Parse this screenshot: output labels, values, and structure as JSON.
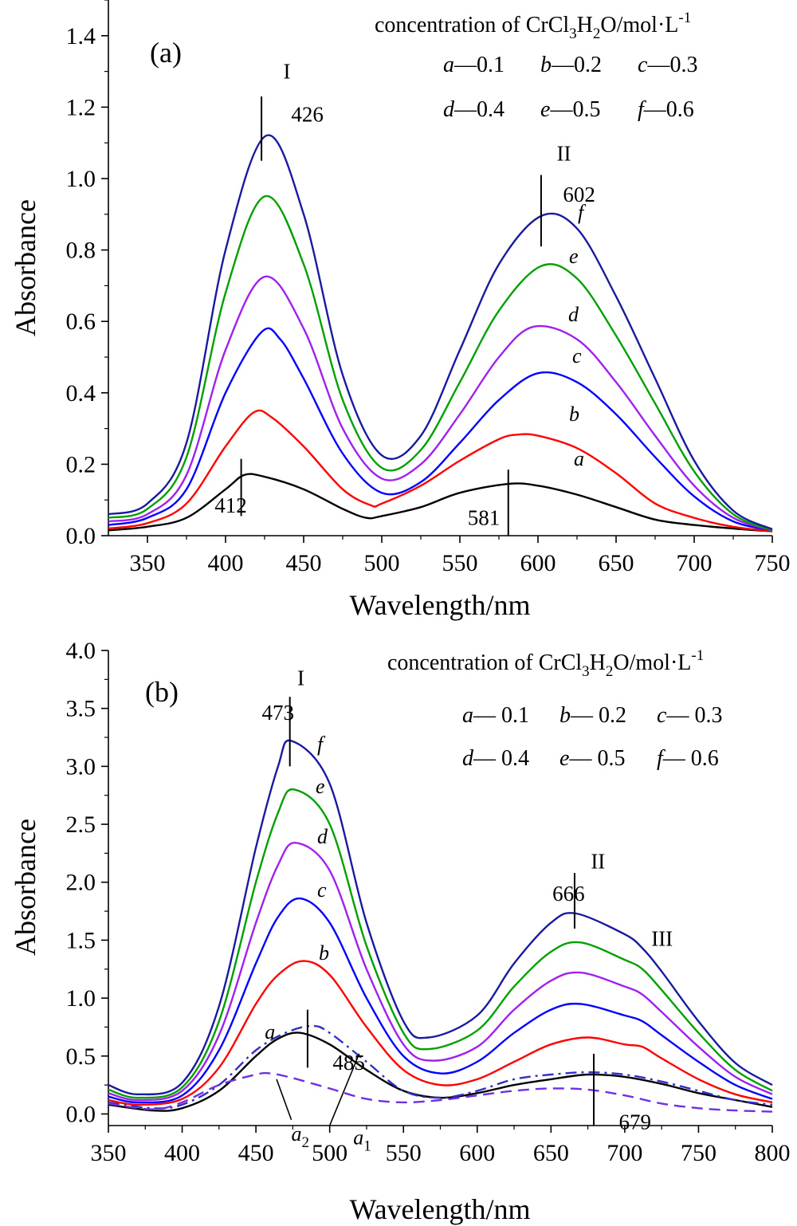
{
  "chart_data": [
    {
      "type": "line",
      "panel_label": "(a)",
      "xlabel": "Wavelength/nm",
      "ylabel": "Absorbance",
      "xlim": [
        325,
        750
      ],
      "ylim": [
        0,
        1.5
      ],
      "xticks": [
        "350",
        "400",
        "450",
        "500",
        "550",
        "600",
        "650",
        "700",
        "750"
      ],
      "yticks": [
        "0.0",
        "0.2",
        "0.4",
        "0.6",
        "0.8",
        "1.0",
        "1.2",
        "1.4"
      ],
      "legend": {
        "title": "concentration of CrCl",
        "title_sub1": "3",
        "title_mid": "H",
        "title_sub2": "2",
        "title_end": "O/mol·L",
        "title_sup": "-1",
        "placement": "top-right",
        "entries": [
          {
            "key": "a",
            "value": "—0.1"
          },
          {
            "key": "b",
            "value": "—0.2"
          },
          {
            "key": "c",
            "value": "—0.3"
          },
          {
            "key": "d",
            "value": "—0.4"
          },
          {
            "key": "e",
            "value": "—0.5"
          },
          {
            "key": "f",
            "value": "—0.6"
          }
        ]
      },
      "series": [
        {
          "label": "a",
          "color": "#000000",
          "x": [
            325,
            350,
            375,
            400,
            412,
            425,
            450,
            475,
            490,
            500,
            525,
            550,
            581,
            600,
            625,
            650,
            675,
            700,
            725,
            750
          ],
          "y": [
            0.015,
            0.025,
            0.05,
            0.13,
            0.17,
            0.165,
            0.13,
            0.075,
            0.05,
            0.055,
            0.08,
            0.12,
            0.145,
            0.14,
            0.115,
            0.08,
            0.045,
            0.03,
            0.02,
            0.012
          ]
        },
        {
          "label": "b",
          "color": "#ff0000",
          "x": [
            325,
            350,
            375,
            400,
            418,
            430,
            450,
            475,
            493,
            500,
            525,
            550,
            575,
            587,
            600,
            625,
            650,
            675,
            700,
            725,
            750
          ],
          "y": [
            0.02,
            0.035,
            0.09,
            0.25,
            0.345,
            0.33,
            0.25,
            0.13,
            0.085,
            0.09,
            0.14,
            0.21,
            0.27,
            0.283,
            0.28,
            0.245,
            0.175,
            0.09,
            0.05,
            0.025,
            0.012
          ]
        },
        {
          "label": "c",
          "color": "#0000ff",
          "x": [
            325,
            350,
            375,
            400,
            423,
            435,
            450,
            475,
            500,
            525,
            550,
            575,
            600,
            625,
            650,
            675,
            700,
            725,
            750
          ],
          "y": [
            0.03,
            0.05,
            0.13,
            0.4,
            0.57,
            0.55,
            0.44,
            0.23,
            0.12,
            0.15,
            0.26,
            0.38,
            0.455,
            0.43,
            0.34,
            0.22,
            0.11,
            0.04,
            0.015
          ]
        },
        {
          "label": "d",
          "color": "#a020f0",
          "x": [
            325,
            350,
            375,
            400,
            425,
            450,
            475,
            500,
            525,
            550,
            575,
            597,
            625,
            650,
            675,
            700,
            725,
            750
          ],
          "y": [
            0.04,
            0.06,
            0.17,
            0.52,
            0.725,
            0.58,
            0.3,
            0.16,
            0.2,
            0.34,
            0.5,
            0.585,
            0.55,
            0.43,
            0.28,
            0.14,
            0.05,
            0.015
          ]
        },
        {
          "label": "e",
          "color": "#00a000",
          "x": [
            325,
            350,
            375,
            400,
            425,
            450,
            475,
            500,
            525,
            550,
            575,
            602,
            625,
            650,
            675,
            700,
            725,
            750
          ],
          "y": [
            0.05,
            0.075,
            0.22,
            0.68,
            0.95,
            0.76,
            0.38,
            0.19,
            0.24,
            0.43,
            0.63,
            0.755,
            0.72,
            0.56,
            0.37,
            0.18,
            0.06,
            0.015
          ]
        },
        {
          "label": "f",
          "color": "#1a1aa0",
          "x": [
            325,
            350,
            375,
            400,
            426,
            450,
            475,
            500,
            525,
            550,
            575,
            602,
            625,
            650,
            675,
            700,
            725,
            750
          ],
          "y": [
            0.06,
            0.09,
            0.26,
            0.8,
            1.12,
            0.9,
            0.45,
            0.225,
            0.28,
            0.52,
            0.76,
            0.895,
            0.86,
            0.67,
            0.44,
            0.21,
            0.07,
            0.018
          ]
        }
      ],
      "annotations": [
        {
          "text": "I",
          "x": 437,
          "y": 1.28
        },
        {
          "text": "426",
          "x": 442,
          "y": 1.16
        },
        {
          "text": "II",
          "x": 612,
          "y": 1.05
        },
        {
          "text": "602",
          "x": 616,
          "y": 0.935
        },
        {
          "text": "412",
          "x": 393,
          "y": 0.065
        },
        {
          "text": "581",
          "x": 555,
          "y": 0.03
        }
      ],
      "marker_lines": [
        {
          "x": 423,
          "y1": 1.05,
          "y2": 1.23
        },
        {
          "x": 602,
          "y1": 0.81,
          "y2": 1.01
        },
        {
          "x": 410,
          "y1": 0.055,
          "y2": 0.215
        },
        {
          "x": 581,
          "y1": 0.0,
          "y2": 0.185
        }
      ]
    },
    {
      "type": "line",
      "panel_label": "(b)",
      "xlabel": "Wavelength/nm",
      "ylabel": "Absorbance",
      "xlim": [
        350,
        800
      ],
      "ylim": [
        -0.1,
        4.0
      ],
      "xticks": [
        "350",
        "400",
        "450",
        "500",
        "550",
        "600",
        "650",
        "700",
        "750",
        "800"
      ],
      "yticks": [
        "0.0",
        "0.5",
        "1.0",
        "1.5",
        "2.0",
        "2.5",
        "3.0",
        "3.5",
        "4.0"
      ],
      "legend": {
        "title": "concentration of CrCl",
        "title_sub1": "3",
        "title_mid": "H",
        "title_sub2": "2",
        "title_end": "O/mol·L",
        "title_sup": "-1",
        "placement": "top-right",
        "entries": [
          {
            "key": "a",
            "value": "— 0.1"
          },
          {
            "key": "b",
            "value": "— 0.2"
          },
          {
            "key": "c",
            "value": "— 0.3"
          },
          {
            "key": "d",
            "value": "— 0.4"
          },
          {
            "key": "e",
            "value": "— 0.5"
          },
          {
            "key": "f",
            "value": "— 0.6"
          }
        ]
      },
      "series": [
        {
          "label": "a",
          "color": "#000000",
          "style": "solid",
          "x": [
            350,
            380,
            400,
            425,
            450,
            465,
            480,
            500,
            525,
            550,
            575,
            600,
            625,
            650,
            675,
            700,
            725,
            750,
            775,
            800
          ],
          "y": [
            0.08,
            0.03,
            0.05,
            0.2,
            0.5,
            0.65,
            0.7,
            0.6,
            0.38,
            0.2,
            0.14,
            0.18,
            0.25,
            0.3,
            0.34,
            0.32,
            0.26,
            0.18,
            0.12,
            0.06
          ]
        },
        {
          "label": "a1",
          "color": "#3030c8",
          "style": "dashdot",
          "x": [
            350,
            380,
            400,
            425,
            450,
            470,
            488,
            500,
            525,
            550,
            575,
            600,
            625,
            650,
            675,
            700,
            725,
            750,
            775,
            800
          ],
          "y": [
            0.1,
            0.05,
            0.08,
            0.25,
            0.55,
            0.7,
            0.76,
            0.7,
            0.45,
            0.2,
            0.14,
            0.2,
            0.3,
            0.34,
            0.36,
            0.34,
            0.28,
            0.2,
            0.12,
            0.08
          ]
        },
        {
          "label": "a2",
          "color": "#7030e0",
          "style": "dashed",
          "x": [
            350,
            380,
            400,
            425,
            450,
            460,
            475,
            500,
            525,
            550,
            575,
            600,
            625,
            650,
            675,
            700,
            725,
            750,
            775,
            800
          ],
          "y": [
            0.09,
            0.04,
            0.1,
            0.25,
            0.34,
            0.35,
            0.31,
            0.22,
            0.13,
            0.1,
            0.12,
            0.16,
            0.2,
            0.22,
            0.21,
            0.16,
            0.09,
            0.05,
            0.03,
            0.02
          ]
        },
        {
          "label": "b",
          "color": "#ff0000",
          "x": [
            350,
            370,
            400,
            425,
            450,
            465,
            482,
            500,
            525,
            550,
            575,
            600,
            625,
            650,
            675,
            700,
            712,
            725,
            750,
            775,
            800
          ],
          "y": [
            0.12,
            0.08,
            0.13,
            0.4,
            0.95,
            1.2,
            1.32,
            1.2,
            0.75,
            0.38,
            0.25,
            0.3,
            0.45,
            0.6,
            0.66,
            0.6,
            0.58,
            0.48,
            0.3,
            0.17,
            0.1
          ]
        },
        {
          "label": "c",
          "color": "#0000ff",
          "x": [
            350,
            370,
            400,
            425,
            450,
            465,
            480,
            500,
            525,
            550,
            575,
            600,
            625,
            650,
            670,
            700,
            712,
            725,
            750,
            775,
            800
          ],
          "y": [
            0.15,
            0.1,
            0.16,
            0.55,
            1.3,
            1.7,
            1.86,
            1.65,
            1.0,
            0.5,
            0.35,
            0.45,
            0.7,
            0.9,
            0.95,
            0.85,
            0.8,
            0.68,
            0.45,
            0.25,
            0.13
          ]
        },
        {
          "label": "d",
          "color": "#a020f0",
          "x": [
            350,
            370,
            400,
            425,
            450,
            465,
            477,
            500,
            525,
            550,
            570,
            600,
            625,
            650,
            670,
            700,
            712,
            725,
            750,
            775,
            800
          ],
          "y": [
            0.18,
            0.12,
            0.2,
            0.68,
            1.65,
            2.15,
            2.34,
            2.1,
            1.25,
            0.6,
            0.46,
            0.58,
            0.9,
            1.15,
            1.22,
            1.1,
            1.03,
            0.88,
            0.58,
            0.32,
            0.17
          ]
        },
        {
          "label": "e",
          "color": "#00a000",
          "x": [
            350,
            370,
            400,
            425,
            450,
            465,
            476,
            500,
            525,
            550,
            567,
            600,
            625,
            650,
            670,
            700,
            712,
            725,
            750,
            775,
            800
          ],
          "y": [
            0.21,
            0.14,
            0.23,
            0.8,
            2.0,
            2.6,
            2.8,
            2.5,
            1.45,
            0.7,
            0.56,
            0.72,
            1.1,
            1.4,
            1.48,
            1.33,
            1.25,
            1.07,
            0.7,
            0.38,
            0.2
          ]
        },
        {
          "label": "f",
          "color": "#1a1aa0",
          "x": [
            350,
            370,
            400,
            425,
            450,
            465,
            474,
            500,
            525,
            550,
            567,
            600,
            625,
            650,
            667,
            700,
            712,
            725,
            750,
            775,
            800
          ],
          "y": [
            0.25,
            0.17,
            0.27,
            0.93,
            2.3,
            3.0,
            3.22,
            2.85,
            1.65,
            0.8,
            0.66,
            0.85,
            1.3,
            1.65,
            1.73,
            1.55,
            1.43,
            1.23,
            0.8,
            0.44,
            0.25
          ]
        }
      ],
      "annotations": [
        {
          "text": "I",
          "x": 478,
          "y": 3.7
        },
        {
          "text": "473",
          "x": 454,
          "y": 3.4
        },
        {
          "text": "II",
          "x": 677,
          "y": 2.12
        },
        {
          "text": "666",
          "x": 651,
          "y": 1.84
        },
        {
          "text": "III",
          "x": 718,
          "y": 1.45
        },
        {
          "text": "485",
          "x": 502,
          "y": 0.38
        },
        {
          "text": "679",
          "x": 696,
          "y": -0.13
        }
      ],
      "curve_labels_extra": [
        {
          "text": "a",
          "x": 456,
          "y": 0.65
        },
        {
          "text": "a",
          "sub": "2",
          "x": 474,
          "y": -0.23
        },
        {
          "text": "a",
          "sub": "1",
          "x": 516,
          "y": -0.26
        }
      ],
      "leader_lines": [
        {
          "x1": 464,
          "y1": 0.3,
          "x2": 474,
          "y2": -0.05
        },
        {
          "x1": 520,
          "y1": 0.52,
          "x2": 500,
          "y2": -0.1
        }
      ],
      "marker_lines": [
        {
          "x": 473,
          "y1": 3.0,
          "y2": 3.6
        },
        {
          "x": 666,
          "y1": 1.6,
          "y2": 2.08
        },
        {
          "x": 485,
          "y1": 0.4,
          "y2": 0.9
        },
        {
          "x": 679,
          "y1": -0.1,
          "y2": 0.52
        }
      ]
    }
  ]
}
